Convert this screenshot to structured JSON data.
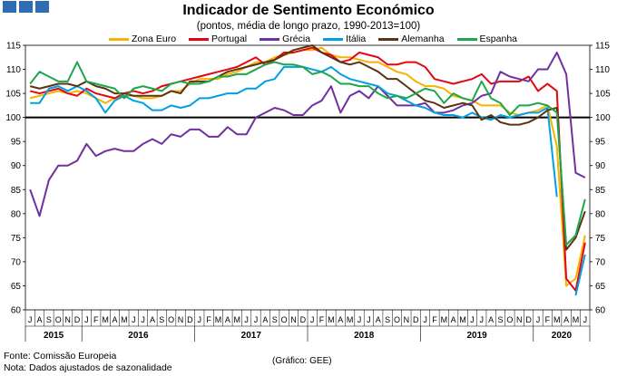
{
  "chart_data": {
    "type": "line",
    "title": "Indicador de Sentimento Económico",
    "subtitle": "(pontos, média de longo prazo, 1990-2013=100)",
    "ylim": [
      60,
      115
    ],
    "yticks": [
      60,
      65,
      70,
      75,
      80,
      85,
      90,
      95,
      100,
      105,
      110,
      115
    ],
    "reference_line": 100,
    "month_labels": [
      "J",
      "A",
      "S",
      "O",
      "N",
      "D",
      "J",
      "F",
      "M",
      "A",
      "M",
      "J",
      "J",
      "A",
      "S",
      "O",
      "N",
      "D",
      "J",
      "F",
      "M",
      "A",
      "M",
      "J",
      "J",
      "A",
      "S",
      "O",
      "N",
      "D",
      "J",
      "F",
      "M",
      "A",
      "M",
      "J",
      "J",
      "A",
      "S",
      "O",
      "N",
      "D",
      "J",
      "F",
      "M",
      "A",
      "M",
      "J",
      "J",
      "A",
      "S",
      "O",
      "N",
      "D",
      "J",
      "F",
      "M",
      "A",
      "M",
      "J"
    ],
    "years": [
      {
        "label": "2015",
        "start": 0,
        "end": 6
      },
      {
        "label": "2016",
        "start": 6,
        "end": 18
      },
      {
        "label": "2017",
        "start": 18,
        "end": 30
      },
      {
        "label": "2018",
        "start": 30,
        "end": 42
      },
      {
        "label": "2019",
        "start": 42,
        "end": 54
      },
      {
        "label": "2020",
        "start": 54,
        "end": 60
      }
    ],
    "series": [
      {
        "name": "Zona Euro",
        "color": "#f5b400",
        "values": [
          104.0,
          104.5,
          105.0,
          105.5,
          105.0,
          105.5,
          105.0,
          104.0,
          103.0,
          104.0,
          104.5,
          104.5,
          104.0,
          104.0,
          104.5,
          105.5,
          105.5,
          107.0,
          108.0,
          108.0,
          108.0,
          109.0,
          109.5,
          110.5,
          111.5,
          111.5,
          112.5,
          113.0,
          113.5,
          114.0,
          114.0,
          114.5,
          113.0,
          112.5,
          112.5,
          112.0,
          111.5,
          111.5,
          110.5,
          109.5,
          109.0,
          107.5,
          106.5,
          106.5,
          106.0,
          104.5,
          104.0,
          103.5,
          102.5,
          102.5,
          102.5,
          101.0,
          100.5,
          101.0,
          101.5,
          102.5,
          94.0,
          65.0,
          66.5,
          75.5
        ]
      },
      {
        "name": "Portugal",
        "color": "#e30613",
        "values": [
          105.5,
          105.0,
          105.5,
          106.0,
          105.0,
          104.5,
          106.0,
          105.0,
          104.5,
          104.0,
          105.0,
          105.5,
          105.0,
          105.5,
          106.5,
          107.0,
          107.5,
          108.0,
          108.5,
          109.0,
          109.5,
          110.0,
          110.5,
          111.5,
          112.5,
          111.0,
          112.0,
          113.5,
          113.5,
          114.0,
          114.5,
          113.5,
          113.0,
          111.5,
          112.0,
          113.5,
          113.0,
          112.5,
          111.0,
          111.0,
          111.5,
          111.5,
          110.5,
          108.0,
          107.5,
          107.0,
          107.5,
          108.0,
          109.0,
          107.0,
          107.5,
          107.5,
          107.5,
          108.5,
          105.5,
          107.0,
          105.5,
          66.5,
          64.0,
          74.0
        ]
      },
      {
        "name": "Grécia",
        "color": "#7030a0",
        "values": [
          85.0,
          79.5,
          87.0,
          90.0,
          90.0,
          91.0,
          94.5,
          92.0,
          93.0,
          93.5,
          93.0,
          93.0,
          94.5,
          95.5,
          94.5,
          96.5,
          96.0,
          97.5,
          97.5,
          96.0,
          96.0,
          98.0,
          96.5,
          96.5,
          100.0,
          101.0,
          102.0,
          101.5,
          100.5,
          100.5,
          102.5,
          103.5,
          106.5,
          101.0,
          104.5,
          105.5,
          104.0,
          106.5,
          104.5,
          102.5,
          102.5,
          102.5,
          103.0,
          101.0,
          101.0,
          101.5,
          102.5,
          103.0,
          104.5,
          105.0,
          109.5,
          108.5,
          108.0,
          107.5,
          110.0,
          110.0,
          113.5,
          109.0,
          88.5,
          87.5
        ]
      },
      {
        "name": "Itália",
        "color": "#00a0e3",
        "values": [
          103.0,
          103.0,
          106.0,
          106.5,
          105.5,
          106.5,
          105.5,
          104.0,
          101.0,
          103.5,
          104.5,
          103.5,
          103.0,
          101.5,
          101.5,
          102.5,
          102.0,
          102.5,
          104.0,
          104.0,
          104.5,
          105.0,
          105.0,
          106.0,
          106.0,
          107.5,
          108.0,
          110.5,
          110.5,
          110.5,
          110.0,
          109.5,
          110.5,
          109.0,
          108.0,
          107.5,
          107.0,
          106.5,
          105.0,
          104.5,
          103.5,
          102.5,
          102.0,
          101.0,
          100.5,
          100.5,
          100.0,
          101.0,
          100.0,
          99.5,
          100.5,
          100.0,
          100.5,
          101.0,
          101.0,
          102.0,
          83.5,
          null,
          63.0,
          71.5
        ]
      },
      {
        "name": "Alemanha",
        "color": "#5a3413",
        "values": [
          106.5,
          106.0,
          106.5,
          107.0,
          107.0,
          106.5,
          107.5,
          106.5,
          106.0,
          105.0,
          105.0,
          104.5,
          104.5,
          104.5,
          104.5,
          105.5,
          105.0,
          107.5,
          107.5,
          107.5,
          108.5,
          109.5,
          110.0,
          110.5,
          111.0,
          111.5,
          112.0,
          113.0,
          114.0,
          114.5,
          115.0,
          113.5,
          112.5,
          111.5,
          111.0,
          111.5,
          110.5,
          109.5,
          108.0,
          108.0,
          106.5,
          105.0,
          103.5,
          103.0,
          102.0,
          102.5,
          103.0,
          102.5,
          99.5,
          100.5,
          99.0,
          98.5,
          98.5,
          99.0,
          100.0,
          101.5,
          102.0,
          72.5,
          75.0,
          80.5
        ]
      },
      {
        "name": "Espanha",
        "color": "#1ea64a",
        "values": [
          107.0,
          109.5,
          108.5,
          107.5,
          107.5,
          111.5,
          107.5,
          107.0,
          106.5,
          106.0,
          104.0,
          106.0,
          106.5,
          106.0,
          105.5,
          107.0,
          107.5,
          107.0,
          107.0,
          107.5,
          108.5,
          108.5,
          109.0,
          109.0,
          110.0,
          111.0,
          111.5,
          111.0,
          111.0,
          110.5,
          109.0,
          109.5,
          108.5,
          107.0,
          107.0,
          106.5,
          106.5,
          105.0,
          104.0,
          104.5,
          104.0,
          105.0,
          106.0,
          105.5,
          103.0,
          105.0,
          104.0,
          103.5,
          107.5,
          104.0,
          103.0,
          100.5,
          102.5,
          102.5,
          103.0,
          102.5,
          101.0,
          73.5,
          75.5,
          83.0
        ]
      }
    ]
  },
  "header": {
    "logo": "logo"
  },
  "footer": {
    "source": "Fonte: Comissão Europeia",
    "note": "Nota: Dados ajustados de sazonalidade",
    "credit": "(Gráfico: GEE)"
  }
}
